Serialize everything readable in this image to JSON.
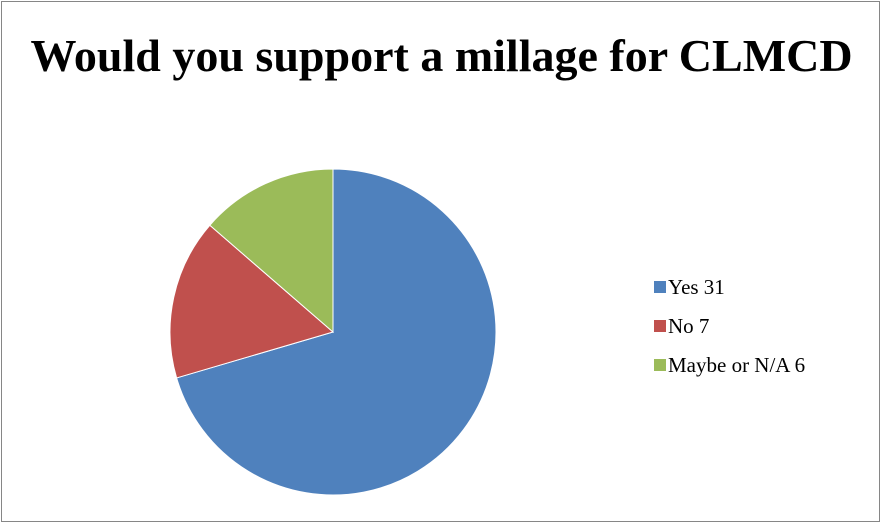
{
  "chart_data": {
    "type": "pie",
    "title": "Would you support a millage for CLMCD",
    "categories": [
      "Yes",
      "No",
      "Maybe or N/A"
    ],
    "values": [
      31,
      7,
      6
    ],
    "legend_labels": [
      "Yes 31",
      "No 7",
      "Maybe or N/A 6"
    ],
    "colors": [
      "#4f81bd",
      "#c0504d",
      "#9bbb59"
    ],
    "legend_placement": "right"
  }
}
